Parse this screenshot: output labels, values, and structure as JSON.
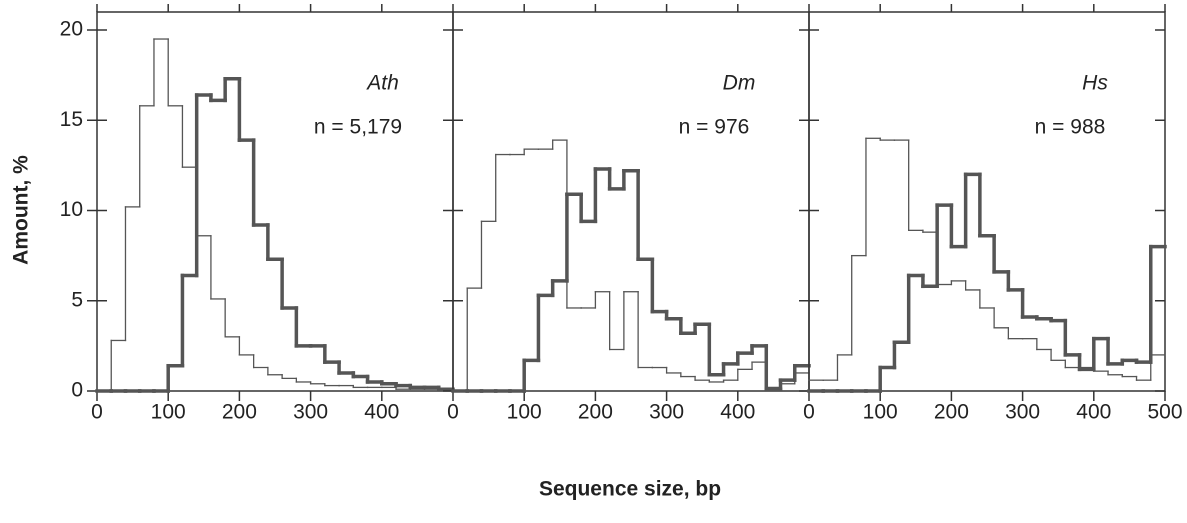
{
  "ylabel": "Amount, %",
  "xlabel": "Sequence size, bp",
  "chart_data": [
    {
      "type": "histogram",
      "label": "Ath",
      "annotation": "n = 5,179",
      "bins": [
        0,
        20,
        40,
        60,
        80,
        100,
        120,
        140,
        160,
        180,
        200,
        220,
        240,
        260,
        280,
        300,
        320,
        340,
        360,
        380,
        400,
        420,
        440,
        460,
        480,
        500
      ],
      "series": [
        {
          "color": "#555555",
          "line_width": 1.3,
          "values": [
            0,
            2.8,
            10.2,
            15.8,
            19.5,
            15.8,
            12.4,
            8.6,
            5.1,
            3.0,
            2.0,
            1.3,
            0.9,
            0.7,
            0.5,
            0.4,
            0.3,
            0.3,
            0.2,
            0.2,
            0.2,
            0.1,
            0.1,
            0.1,
            0.1
          ]
        },
        {
          "color": "#555555",
          "line_width": 3.5,
          "values": [
            0,
            0,
            0,
            0,
            0,
            1.4,
            6.4,
            16.4,
            16.1,
            17.3,
            13.9,
            9.2,
            7.3,
            4.6,
            2.5,
            2.5,
            1.6,
            1.0,
            0.8,
            0.5,
            0.4,
            0.3,
            0.2,
            0.2,
            0.1
          ]
        }
      ],
      "xlim": [
        0,
        500
      ],
      "xticks": [
        0,
        100,
        200,
        300,
        400
      ],
      "ylim": [
        0,
        20
      ],
      "yticks": [
        0,
        5,
        10,
        15,
        20
      ]
    },
    {
      "type": "histogram",
      "label": "Dm",
      "annotation": "n = 976",
      "bins": [
        0,
        20,
        40,
        60,
        80,
        100,
        120,
        140,
        160,
        180,
        200,
        220,
        240,
        260,
        280,
        300,
        320,
        340,
        360,
        380,
        400,
        420,
        440,
        460,
        480,
        500
      ],
      "series": [
        {
          "color": "#555555",
          "line_width": 1.3,
          "values": [
            0,
            5.7,
            9.4,
            13.1,
            13.1,
            13.4,
            13.4,
            13.9,
            4.6,
            4.6,
            5.5,
            2.3,
            5.5,
            1.3,
            1.3,
            1.0,
            0.8,
            0.6,
            0.5,
            0.6,
            1.2,
            1.6,
            0.2,
            0.4,
            1.0
          ]
        },
        {
          "color": "#555555",
          "line_width": 3.5,
          "values": [
            0,
            0,
            0,
            0,
            0,
            1.7,
            5.3,
            6.1,
            10.9,
            9.4,
            12.3,
            11.2,
            12.2,
            7.3,
            4.4,
            4.0,
            3.2,
            3.7,
            0.9,
            1.5,
            2.1,
            2.5,
            0.1,
            0.6,
            1.4
          ]
        }
      ],
      "xlim": [
        0,
        500
      ],
      "xticks": [
        0,
        100,
        200,
        300,
        400
      ],
      "ylim": [
        0,
        20
      ]
    },
    {
      "type": "histogram",
      "label": "Hs",
      "annotation": "n = 988",
      "bins": [
        0,
        20,
        40,
        60,
        80,
        100,
        120,
        140,
        160,
        180,
        200,
        220,
        240,
        260,
        280,
        300,
        320,
        340,
        360,
        380,
        400,
        420,
        440,
        460,
        480,
        500
      ],
      "series": [
        {
          "color": "#555555",
          "line_width": 1.3,
          "values": [
            0.6,
            0.6,
            2.0,
            7.5,
            14.0,
            13.9,
            13.9,
            8.9,
            8.8,
            5.9,
            6.1,
            5.6,
            4.6,
            3.5,
            2.9,
            2.9,
            2.3,
            1.7,
            1.3,
            1.3,
            1.1,
            0.9,
            0.8,
            0.6,
            2.0
          ]
        },
        {
          "color": "#555555",
          "line_width": 3.5,
          "values": [
            0,
            0,
            0,
            0,
            0,
            1.3,
            2.7,
            6.4,
            5.8,
            10.3,
            8.0,
            12.0,
            8.6,
            6.6,
            5.6,
            4.1,
            4.0,
            3.9,
            2.0,
            1.2,
            2.9,
            1.5,
            1.7,
            1.6,
            8.0
          ]
        }
      ],
      "xlim": [
        0,
        500
      ],
      "xticks": [
        0,
        100,
        200,
        300,
        400,
        500
      ],
      "ylim": [
        0,
        20
      ]
    }
  ]
}
